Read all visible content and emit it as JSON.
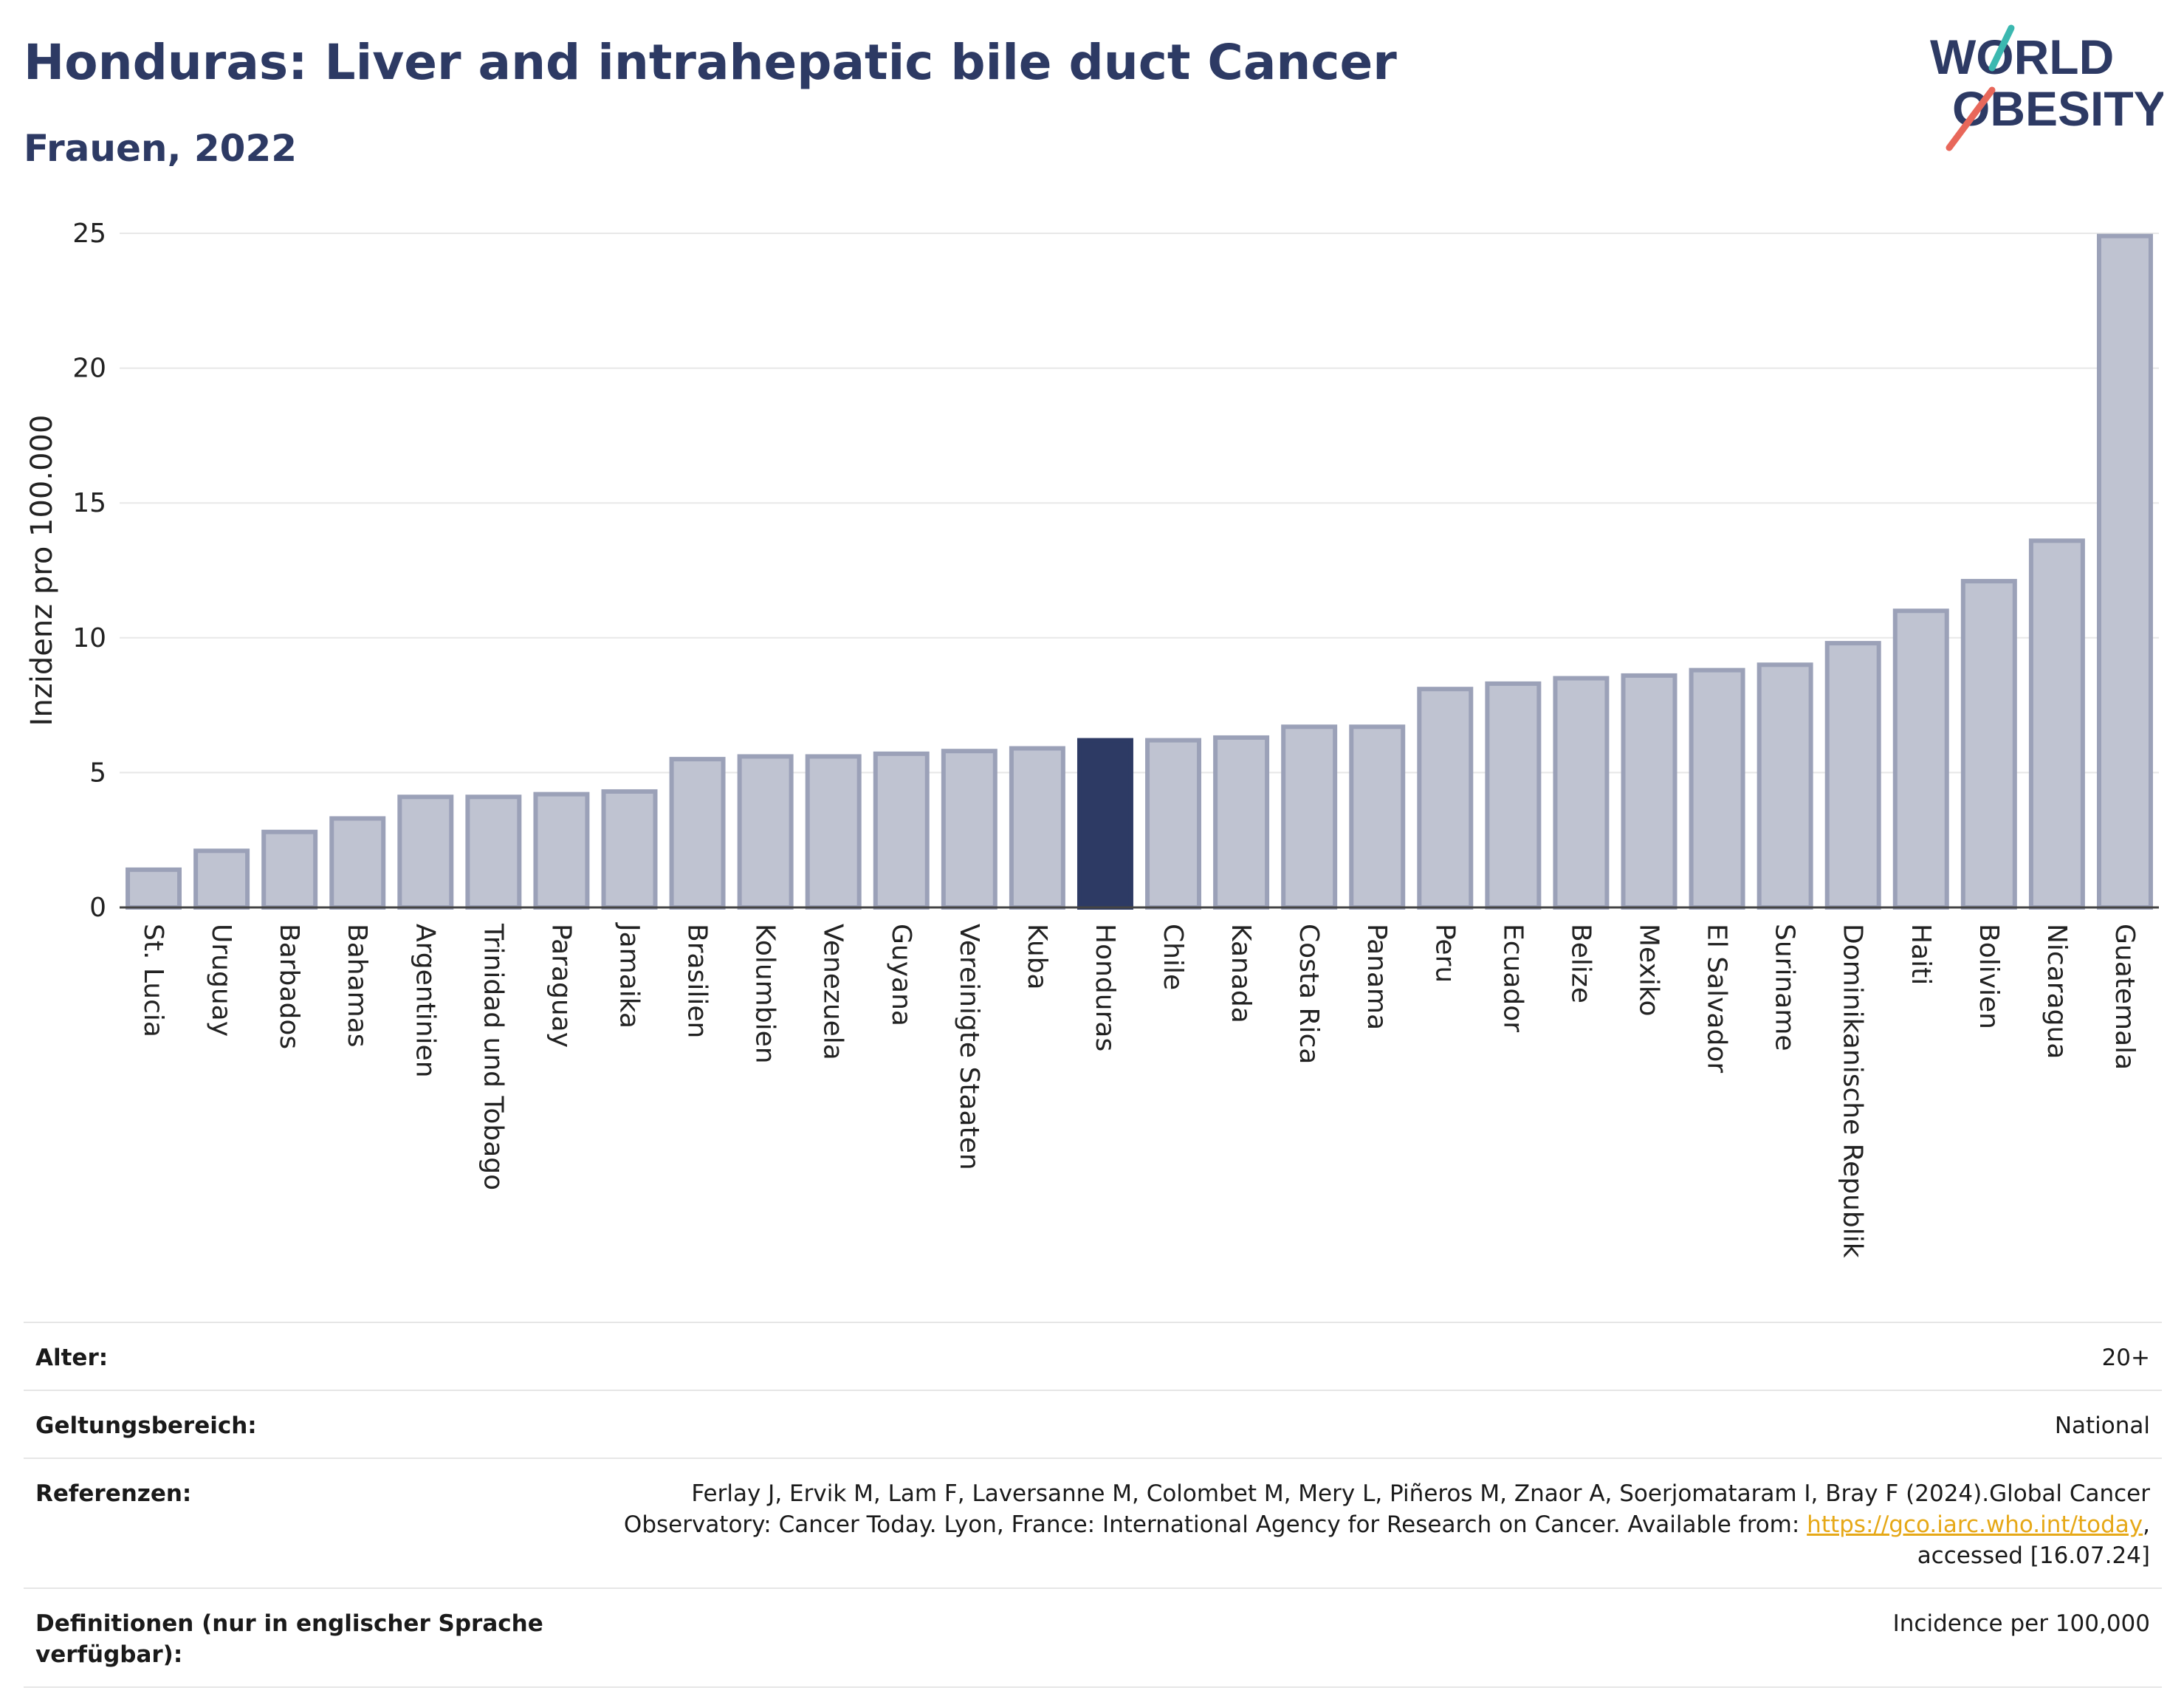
{
  "header": {
    "title": "Honduras: Liver and intrahepatic bile duct Cancer",
    "subtitle": "Frauen, 2022"
  },
  "logo": {
    "line1": "WORLD",
    "line2": "OBESITY",
    "text_color": "#2d3a64",
    "slash_colors": [
      "#3bb8b0",
      "#e8675a"
    ]
  },
  "colors": {
    "highlight": "#2d3a64",
    "bar_fill": "#bfc3d1",
    "bar_stroke": "#9ba1b8",
    "grid": "#e8e8e8"
  },
  "chart_data": {
    "type": "bar",
    "ylabel": "Inzidenz pro 100.000",
    "ylim": [
      0,
      25
    ],
    "yticks": [
      0,
      5,
      10,
      15,
      20,
      25
    ],
    "grid": true,
    "highlight": "Honduras",
    "categories": [
      "St. Lucia",
      "Uruguay",
      "Barbados",
      "Bahamas",
      "Argentinien",
      "Trinidad und Tobago",
      "Paraguay",
      "Jamaika",
      "Brasilien",
      "Kolumbien",
      "Venezuela",
      "Guyana",
      "Vereinigte Staaten",
      "Kuba",
      "Honduras",
      "Chile",
      "Kanada",
      "Costa Rica",
      "Panama",
      "Peru",
      "Ecuador",
      "Belize",
      "Mexiko",
      "El Salvador",
      "Suriname",
      "Dominikanische Republik",
      "Haiti",
      "Bolivien",
      "Nicaragua",
      "Guatemala"
    ],
    "values": [
      1.4,
      2.1,
      2.8,
      3.3,
      4.1,
      4.1,
      4.2,
      4.3,
      5.5,
      5.6,
      5.6,
      5.7,
      5.8,
      5.9,
      6.2,
      6.2,
      6.3,
      6.7,
      6.7,
      8.1,
      8.3,
      8.5,
      8.6,
      8.8,
      9.0,
      9.8,
      11.0,
      12.1,
      13.6,
      24.9
    ]
  },
  "meta": {
    "age_label": "Alter:",
    "age_value": "20+",
    "scope_label": "Geltungsbereich:",
    "scope_value": "National",
    "ref_label": "Referenzen:",
    "ref_text_1": "Ferlay J, Ervik M, Lam F, Laversanne M, Colombet M, Mery L, Piñeros M, Znaor A, Soerjomataram I, Bray F (2024).Global Cancer Observatory: Cancer Today. Lyon, France: International Agency for Research on Cancer. Available from: ",
    "ref_link": "https://gco.iarc.who.int/today",
    "ref_text_2": ", accessed [16.07.24]",
    "def_label": "Definitionen (nur in englischer Sprache verfügbar):",
    "def_value": "Incidence per 100,000"
  }
}
